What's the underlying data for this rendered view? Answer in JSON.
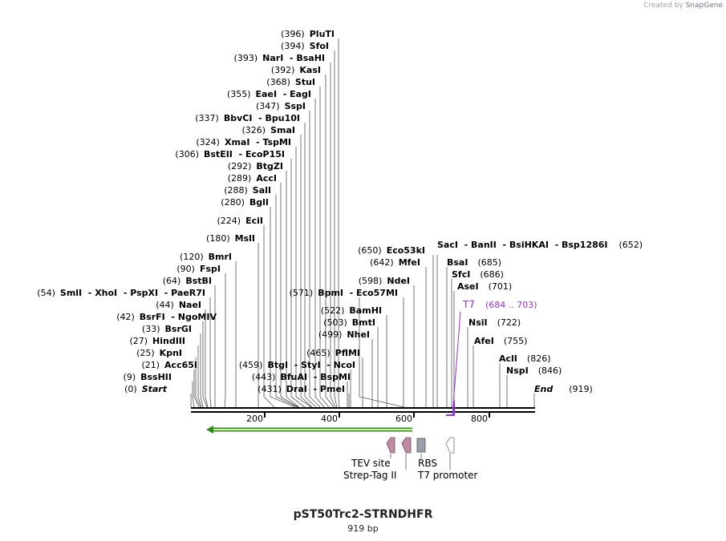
{
  "credit": {
    "prefix": "Created by",
    "brand": "SnapGene"
  },
  "title": "pST50Trc2-STRNDHFR",
  "length_label": "919 bp",
  "ruler_ticks": [
    "200",
    "400",
    "600",
    "800"
  ],
  "enzymes": [
    {
      "group": "(396)",
      "name": "PluTI"
    },
    {
      "group": "(394)",
      "name": "SfoI"
    },
    {
      "group": "(393)",
      "name": "NarI  - BsaHI"
    },
    {
      "group": "(392)",
      "name": "KasI"
    },
    {
      "group": "(368)",
      "name": "StuI"
    },
    {
      "group": "(355)",
      "name": "EaeI  - EagI"
    },
    {
      "group": "(347)",
      "name": "SspI"
    },
    {
      "group": "(337)",
      "name": "BbvCI  - Bpu10I"
    },
    {
      "group": "(326)",
      "name": "SmaI"
    },
    {
      "group": "(324)",
      "name": "XmaI  - TspMI"
    },
    {
      "group": "(306)",
      "name": "BstEII  - EcoP15I"
    },
    {
      "group": "(292)",
      "name": "BtgZI"
    },
    {
      "group": "(289)",
      "name": "AccI"
    },
    {
      "group": "(288)",
      "name": "SalI"
    },
    {
      "group": "(280)",
      "name": "BglI"
    },
    {
      "group": "(224)",
      "name": "EciI"
    },
    {
      "group": "(180)",
      "name": "MslI"
    },
    {
      "group": "(120)",
      "name": "BmrI"
    },
    {
      "group": "(90)",
      "name": "FspI"
    },
    {
      "group": "(64)",
      "name": "BstBI"
    },
    {
      "group": "(54)",
      "name": "SmlI  - XhoI  - PspXI  - PaeR7I"
    },
    {
      "group": "(44)",
      "name": "NaeI"
    },
    {
      "group": "(42)",
      "name": "BsrFI  - NgoMIV"
    },
    {
      "group": "(33)",
      "name": "BsrGI"
    },
    {
      "group": "(27)",
      "name": "HindIII"
    },
    {
      "group": "(25)",
      "name": "KpnI"
    },
    {
      "group": "(21)",
      "name": "Acc65I"
    },
    {
      "group": "(9)",
      "name": "BssHII"
    },
    {
      "group": "(0)",
      "name": "Start"
    },
    {
      "group": "(571)",
      "name": "BpmI  - Eco57MI"
    },
    {
      "group": "(522)",
      "name": "BamHI"
    },
    {
      "group": "(503)",
      "name": "BmtI"
    },
    {
      "group": "(499)",
      "name": "NheI"
    },
    {
      "group": "(465)",
      "name": "PflMI"
    },
    {
      "group": "(459)",
      "name": "BtgI  - StyI  - NcoI"
    },
    {
      "group": "(443)",
      "name": "BfuAI  - BspMI"
    },
    {
      "group": "(431)",
      "name": "DraI  - PmeI"
    },
    {
      "group": "(650)",
      "name": "Eco53kI"
    },
    {
      "group": "(642)",
      "name": "MfeI"
    },
    {
      "group": "(598)",
      "name": "NdeI"
    },
    {
      "group": "(652)",
      "name": "SacI  - BanII  - BsiHKAI  - Bsp1286I"
    },
    {
      "group": "(685)",
      "name": "BsaI"
    },
    {
      "group": "(686)",
      "name": "SfcI"
    },
    {
      "group": "(701)",
      "name": "AseI"
    },
    {
      "group": "(722)",
      "name": "NsiI"
    },
    {
      "group": "(755)",
      "name": "AfeI"
    },
    {
      "group": "(826)",
      "name": "AclI"
    },
    {
      "group": "(846)",
      "name": "NspI"
    },
    {
      "group": "(919)",
      "name": "End"
    }
  ],
  "primer": {
    "name": "T7",
    "range": "(684 .. 703)",
    "color": "#9b30d9"
  },
  "features": {
    "tev_site": "TEV site",
    "strep_tag": "Strep-Tag II",
    "rbs": "RBS",
    "t7_promoter": "T7 promoter",
    "orf_color": "#2c8c1e",
    "tag_color": "#c08aa2",
    "rbs_color": "#9aa0a8"
  }
}
